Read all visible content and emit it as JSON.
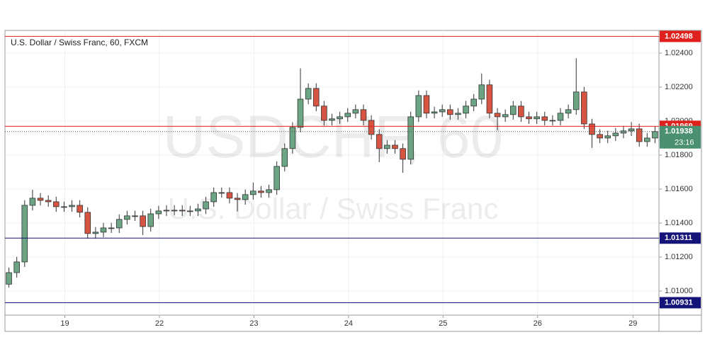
{
  "chart_data": {
    "type": "candlestick",
    "title": "U.S. Dollar / Swiss Franc, 60, FXCM",
    "watermark": "USDCHF, 60",
    "watermark_subtitle": "U.S. Dollar / Swiss Franc",
    "open": [
      1.0104,
      1.01108,
      1.01171,
      1.01504,
      1.01546,
      1.01533,
      1.01525,
      1.01496,
      1.01496,
      1.01504,
      1.01463,
      1.01338,
      1.01346,
      1.01371,
      1.01371,
      1.01421,
      1.01442,
      1.01442,
      1.01379,
      1.01454,
      1.01471,
      1.01475,
      1.01475,
      1.01471,
      1.01471,
      1.01483,
      1.01525,
      1.01579,
      1.01579,
      1.01546,
      1.01538,
      1.01567,
      1.01588,
      1.01579,
      1.01596,
      1.01733,
      1.01838,
      1.01963,
      1.02129,
      1.02192,
      1.02088,
      1.02004,
      1.02013,
      1.02025,
      1.02046,
      1.02067,
      1.02004,
      1.01921,
      1.01838,
      1.01858,
      1.01838,
      1.01775,
      1.02025,
      1.0215,
      1.02046,
      1.02054,
      1.02067,
      1.02038,
      1.02046,
      1.02088,
      1.02129,
      1.02213,
      1.02046,
      1.02025,
      1.02038,
      1.02088,
      1.02025,
      1.02013,
      1.02025,
      1.02004,
      1.02004,
      1.02046,
      1.02067,
      1.02171,
      1.01983,
      1.01921,
      1.019,
      1.01913,
      1.01929,
      1.01942,
      1.01954,
      1.01879,
      1.019
    ],
    "high": [
      1.01138,
      1.01201,
      1.01534,
      1.01596,
      1.01576,
      1.01563,
      1.01555,
      1.01526,
      1.01534,
      1.01534,
      1.01493,
      1.01376,
      1.01401,
      1.01401,
      1.01451,
      1.01472,
      1.01472,
      1.01472,
      1.01484,
      1.01501,
      1.01505,
      1.01505,
      1.01505,
      1.01501,
      1.01513,
      1.01555,
      1.01609,
      1.01609,
      1.01609,
      1.01576,
      1.01597,
      1.01638,
      1.01618,
      1.01626,
      1.01763,
      1.01868,
      1.01993,
      1.0231,
      1.02222,
      1.02222,
      1.02118,
      1.02043,
      1.02055,
      1.02076,
      1.02097,
      1.02097,
      1.02034,
      1.01951,
      1.01888,
      1.01888,
      1.01868,
      1.02055,
      1.0218,
      1.0218,
      1.02084,
      1.02097,
      1.02097,
      1.02076,
      1.02118,
      1.02159,
      1.0228,
      1.02243,
      1.02076,
      1.02068,
      1.02118,
      1.02118,
      1.02055,
      1.02055,
      1.02055,
      1.02034,
      1.02076,
      1.02097,
      1.0237,
      1.02201,
      1.02013,
      1.01951,
      1.01943,
      1.01959,
      1.01972,
      1.01994,
      1.01984,
      1.0193,
      1.01968
    ],
    "low": [
      1.0102,
      1.01078,
      1.01141,
      1.01474,
      1.01503,
      1.01495,
      1.01466,
      1.01466,
      1.01466,
      1.01433,
      1.01308,
      1.01308,
      1.01316,
      1.01341,
      1.01341,
      1.01391,
      1.01412,
      1.01329,
      1.01349,
      1.01424,
      1.01441,
      1.01445,
      1.01441,
      1.01441,
      1.01441,
      1.01453,
      1.01495,
      1.01549,
      1.01516,
      1.01468,
      1.01508,
      1.01537,
      1.01549,
      1.01549,
      1.01566,
      1.01703,
      1.01808,
      1.01933,
      1.02099,
      1.02058,
      1.01974,
      1.01974,
      1.01983,
      1.01995,
      1.02016,
      1.01974,
      1.01891,
      1.01758,
      1.01808,
      1.01808,
      1.01695,
      1.01745,
      1.01995,
      1.02016,
      1.02016,
      1.02024,
      1.02008,
      1.02008,
      1.02016,
      1.02058,
      1.02099,
      1.02016,
      1.01945,
      1.01995,
      1.02008,
      1.01995,
      1.01983,
      1.01983,
      1.01974,
      1.01974,
      1.01974,
      1.02016,
      1.02037,
      1.01953,
      1.01842,
      1.0187,
      1.0187,
      1.01883,
      1.01899,
      1.01912,
      1.01849,
      1.01849,
      1.0187
    ],
    "close": [
      1.01108,
      1.01171,
      1.01504,
      1.01546,
      1.01533,
      1.01525,
      1.01496,
      1.01496,
      1.01504,
      1.01463,
      1.01338,
      1.01346,
      1.01371,
      1.01371,
      1.01421,
      1.01442,
      1.01442,
      1.01379,
      1.01454,
      1.01471,
      1.01475,
      1.01475,
      1.01471,
      1.01471,
      1.01483,
      1.01525,
      1.01579,
      1.01579,
      1.01546,
      1.01538,
      1.01567,
      1.01588,
      1.01579,
      1.01596,
      1.01733,
      1.01838,
      1.01963,
      1.02129,
      1.02192,
      1.02088,
      1.02004,
      1.02013,
      1.02025,
      1.02046,
      1.02067,
      1.02004,
      1.01921,
      1.01838,
      1.01858,
      1.01838,
      1.01775,
      1.02025,
      1.0215,
      1.02046,
      1.02054,
      1.02067,
      1.02038,
      1.02046,
      1.02088,
      1.02129,
      1.02213,
      1.02046,
      1.02025,
      1.02038,
      1.02088,
      1.02025,
      1.02013,
      1.02025,
      1.02004,
      1.02004,
      1.02046,
      1.02067,
      1.02171,
      1.01983,
      1.01921,
      1.019,
      1.01913,
      1.01929,
      1.01942,
      1.01954,
      1.01879,
      1.019,
      1.01938
    ],
    "up_color": "#6ba583",
    "down_color": "#d75442",
    "xlim": [
      0,
      83
    ],
    "xticks": [
      {
        "value": 7.6,
        "label": "19"
      },
      {
        "value": 19.6,
        "label": "22"
      },
      {
        "value": 31.6,
        "label": "23"
      },
      {
        "value": 43.6,
        "label": "24"
      },
      {
        "value": 55.6,
        "label": "25"
      },
      {
        "value": 67.6,
        "label": "26"
      },
      {
        "value": 79.7,
        "label": "29"
      }
    ],
    "ylim": [
      1.00858,
      1.02533
    ],
    "yticks": [
      {
        "value": 1.01,
        "label": "1.01000"
      },
      {
        "value": 1.012,
        "label": "1.01200"
      },
      {
        "value": 1.014,
        "label": "1.01400"
      },
      {
        "value": 1.016,
        "label": "1.01600"
      },
      {
        "value": 1.018,
        "label": "1.01800"
      },
      {
        "value": 1.02,
        "label": "1.02000"
      },
      {
        "value": 1.022,
        "label": "1.02200"
      },
      {
        "value": 1.024,
        "label": "1.02400"
      }
    ],
    "grid": true,
    "levels": [
      {
        "value": 1.02498,
        "color": "#e0201c"
      },
      {
        "value": 1.01969,
        "color": "#e0201c"
      },
      {
        "value": 1.01311,
        "color": "#13137a"
      },
      {
        "value": 1.00931,
        "color": "#13137a"
      }
    ],
    "last_price": 1.01938,
    "last_price_color": "#4a9070",
    "countdown": "23:16"
  }
}
